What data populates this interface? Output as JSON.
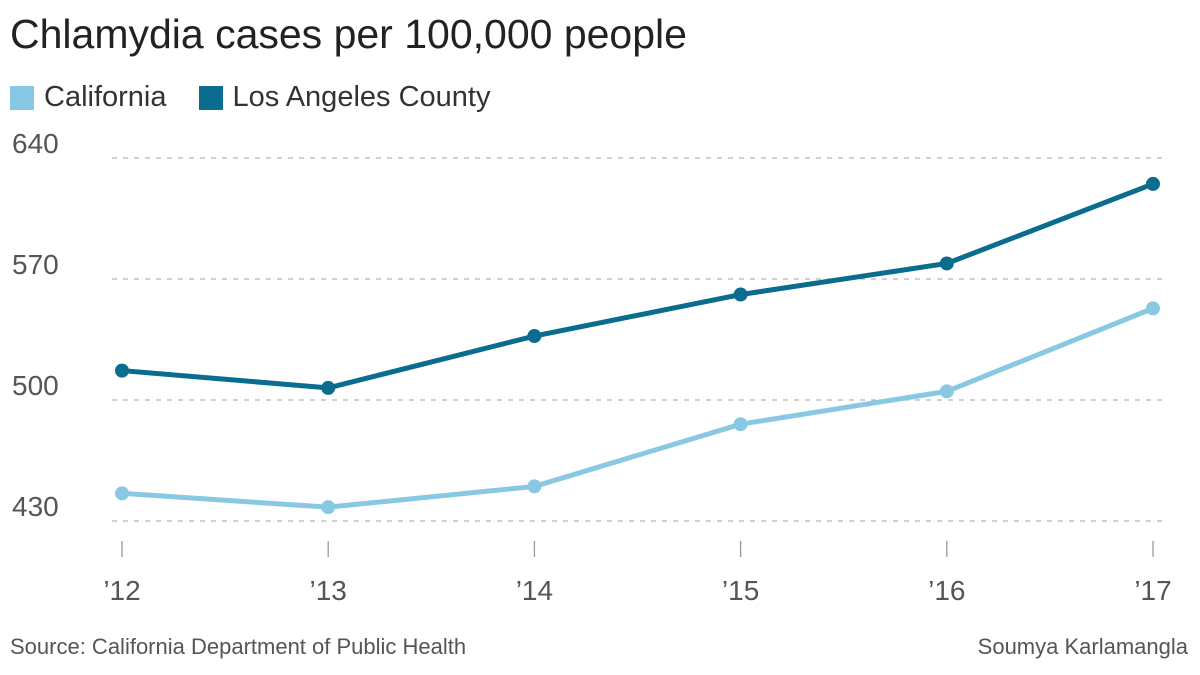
{
  "chart_data": {
    "type": "line",
    "title": "Chlamydia cases per 100,000 people",
    "categories": [
      "’12",
      "’13",
      "’14",
      "’15",
      "’16",
      "’17"
    ],
    "series": [
      {
        "name": "California",
        "color": "#89c8e2",
        "values": [
          446,
          438,
          450,
          486,
          505,
          553
        ]
      },
      {
        "name": "Los Angeles County",
        "color": "#0a6c8e",
        "values": [
          517,
          507,
          537,
          561,
          579,
          625
        ]
      }
    ],
    "y_ticks": [
      "640",
      "570",
      "500",
      "430"
    ],
    "ylim": [
      430,
      640
    ],
    "grid": true,
    "legend_position": "top-left"
  },
  "footer": {
    "source": "Source: California Department of Public Health",
    "credit": "Soumya Karlamangla"
  }
}
